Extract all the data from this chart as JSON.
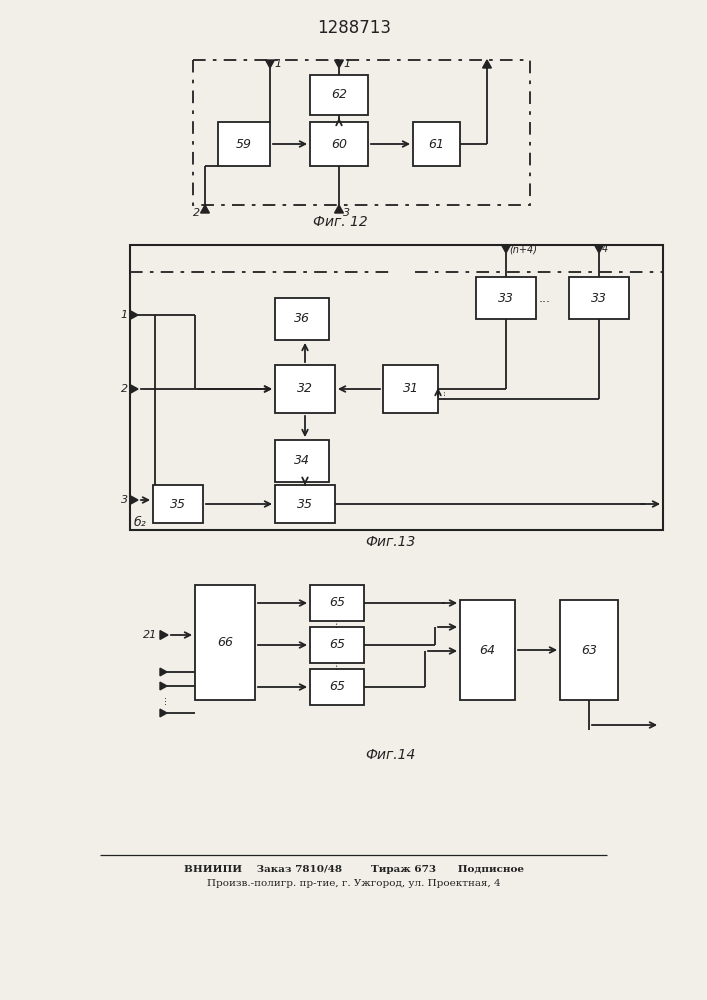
{
  "title": "1288713",
  "fig12_label": "Фиг. 12",
  "fig13_label": "Фиг.13",
  "fig14_label": "Фиг.14",
  "footer_line1": "ВНИИПИ    Заказ 7810/48        Тираж 673      Подписное",
  "footer_line2": "Произв.-полигр. пр-тие, г. Ужгород, ул. Проектная, 4",
  "lc": "#222222",
  "bf": "#ffffff",
  "bg": "#f2efe9"
}
